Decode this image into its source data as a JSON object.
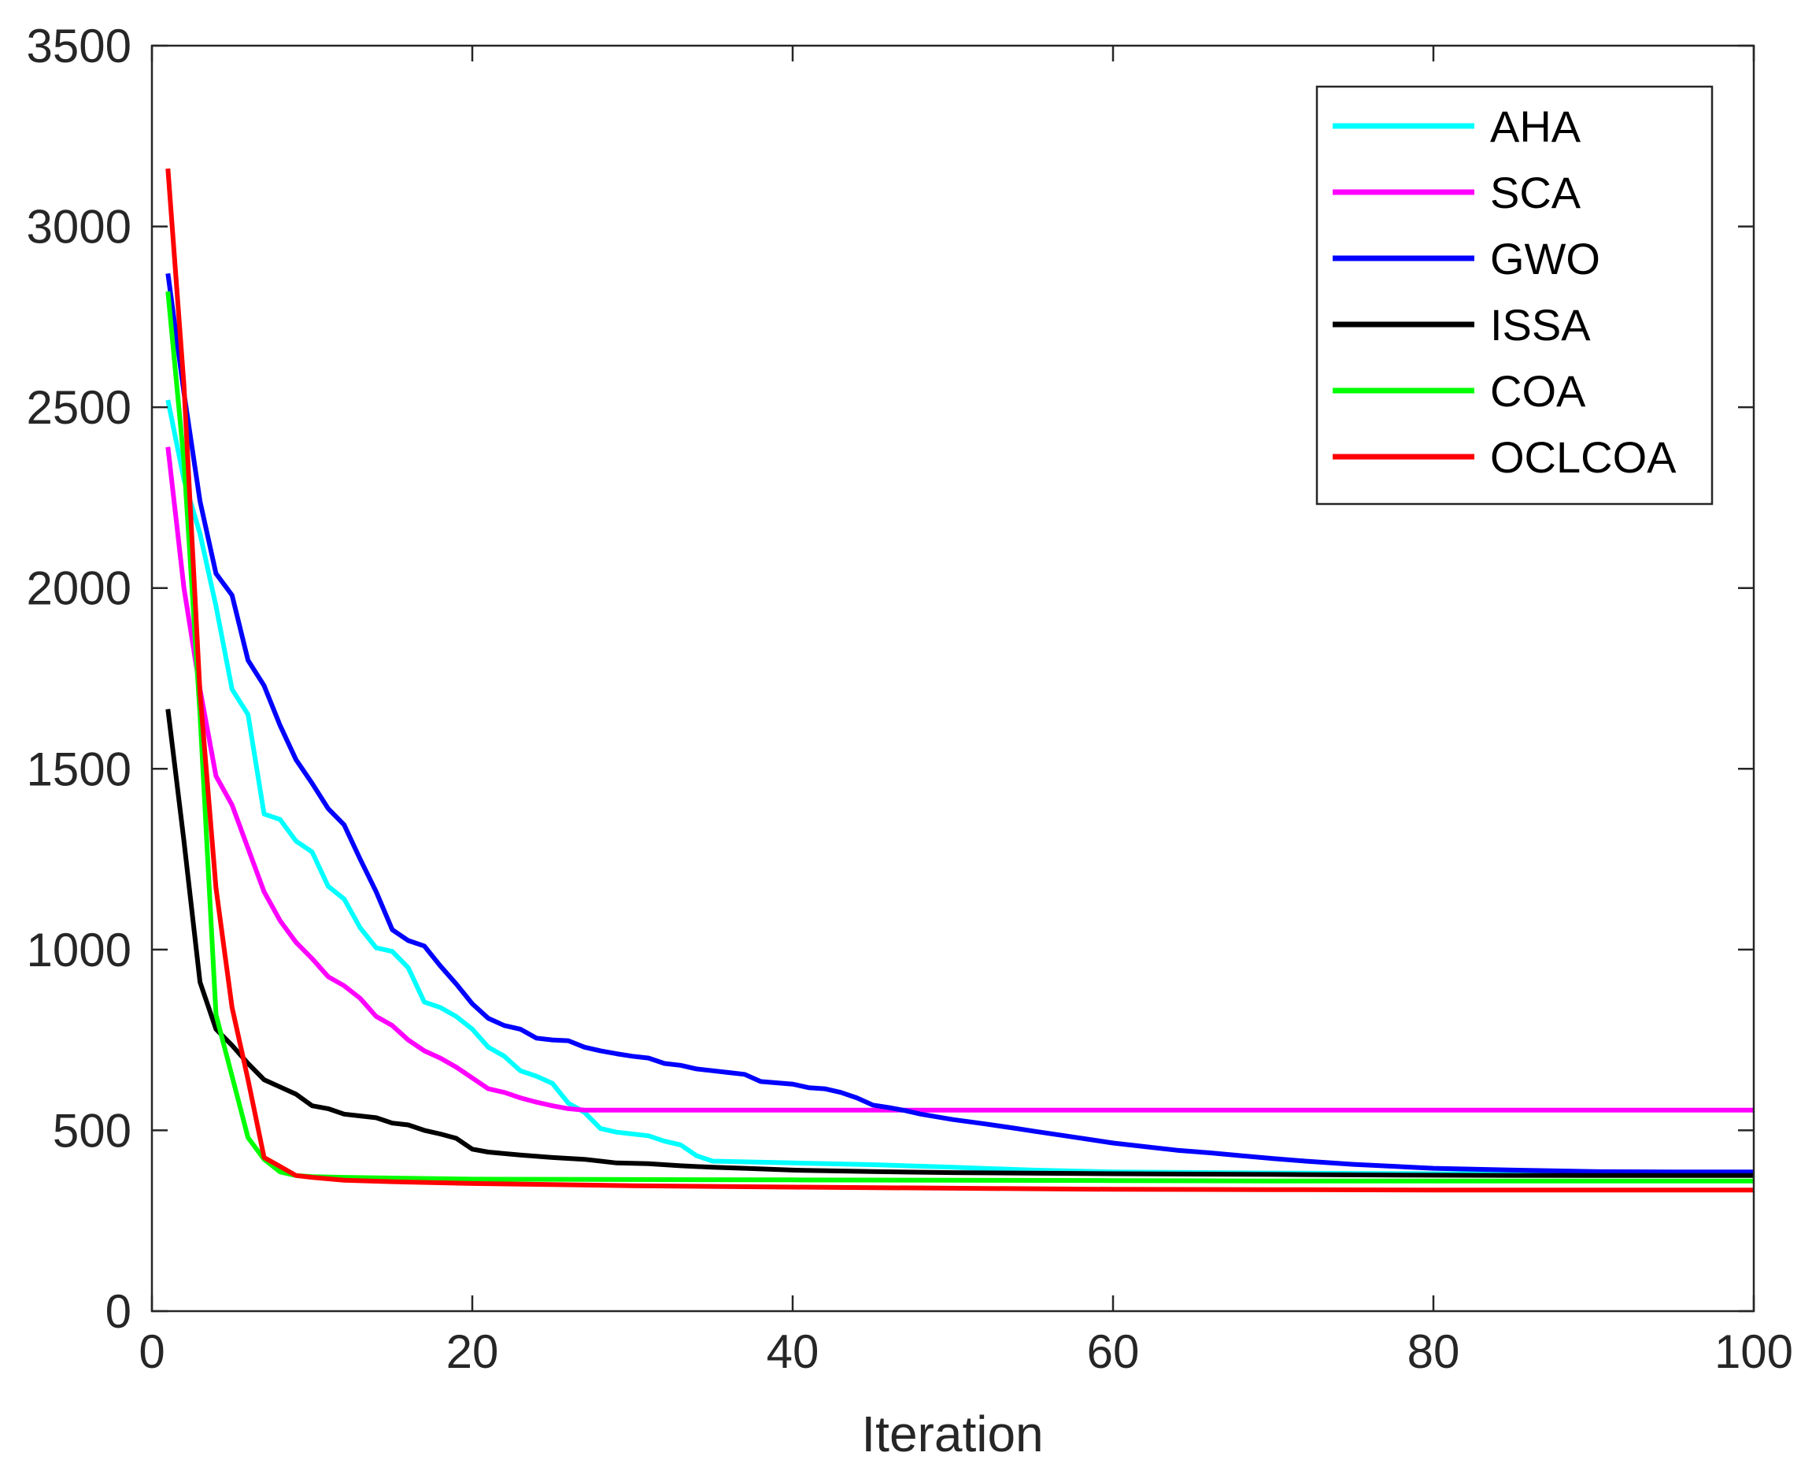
{
  "chart_data": {
    "type": "line",
    "title": "",
    "xlabel": "Iteration",
    "ylabel": "",
    "xlim": [
      0,
      100
    ],
    "ylim": [
      0,
      3500
    ],
    "xticks": [
      0,
      20,
      40,
      60,
      80,
      100
    ],
    "yticks": [
      0,
      500,
      1000,
      1500,
      2000,
      2500,
      3000,
      3500
    ],
    "grid": false,
    "legend_position": "top-right",
    "series": [
      {
        "name": "AHA",
        "color": "#00ffff",
        "points": [
          [
            1,
            2520
          ],
          [
            2,
            2300
          ],
          [
            3,
            2150
          ],
          [
            4,
            1950
          ],
          [
            5,
            1720
          ],
          [
            6,
            1650
          ],
          [
            7,
            1375
          ],
          [
            8,
            1360
          ],
          [
            9,
            1300
          ],
          [
            10,
            1270
          ],
          [
            11,
            1175
          ],
          [
            12,
            1140
          ],
          [
            13,
            1060
          ],
          [
            14,
            1005
          ],
          [
            15,
            995
          ],
          [
            16,
            950
          ],
          [
            17,
            855
          ],
          [
            18,
            840
          ],
          [
            19,
            815
          ],
          [
            20,
            780
          ],
          [
            21,
            730
          ],
          [
            22,
            705
          ],
          [
            23,
            665
          ],
          [
            24,
            650
          ],
          [
            25,
            630
          ],
          [
            26,
            575
          ],
          [
            27,
            550
          ],
          [
            28,
            505
          ],
          [
            29,
            495
          ],
          [
            30,
            490
          ],
          [
            31,
            485
          ],
          [
            32,
            470
          ],
          [
            33,
            460
          ],
          [
            34,
            430
          ],
          [
            35,
            415
          ],
          [
            40,
            410
          ],
          [
            45,
            405
          ],
          [
            50,
            398
          ],
          [
            55,
            390
          ],
          [
            60,
            385
          ],
          [
            70,
            382
          ],
          [
            80,
            380
          ],
          [
            90,
            380
          ],
          [
            100,
            380
          ]
        ]
      },
      {
        "name": "SCA",
        "color": "#ff00ff",
        "points": [
          [
            1,
            2390
          ],
          [
            2,
            2000
          ],
          [
            3,
            1720
          ],
          [
            4,
            1480
          ],
          [
            5,
            1400
          ],
          [
            6,
            1280
          ],
          [
            7,
            1160
          ],
          [
            8,
            1080
          ],
          [
            9,
            1020
          ],
          [
            10,
            975
          ],
          [
            11,
            925
          ],
          [
            12,
            900
          ],
          [
            13,
            865
          ],
          [
            14,
            815
          ],
          [
            15,
            790
          ],
          [
            16,
            750
          ],
          [
            17,
            720
          ],
          [
            18,
            700
          ],
          [
            19,
            675
          ],
          [
            20,
            645
          ],
          [
            21,
            615
          ],
          [
            22,
            605
          ],
          [
            23,
            590
          ],
          [
            24,
            578
          ],
          [
            25,
            568
          ],
          [
            26,
            560
          ],
          [
            27,
            556
          ],
          [
            30,
            556
          ],
          [
            40,
            556
          ],
          [
            50,
            556
          ],
          [
            60,
            556
          ],
          [
            70,
            556
          ],
          [
            80,
            556
          ],
          [
            90,
            556
          ],
          [
            100,
            556
          ]
        ]
      },
      {
        "name": "GWO",
        "color": "#0000ff",
        "points": [
          [
            1,
            2870
          ],
          [
            2,
            2540
          ],
          [
            3,
            2240
          ],
          [
            4,
            2040
          ],
          [
            5,
            1980
          ],
          [
            6,
            1800
          ],
          [
            7,
            1730
          ],
          [
            8,
            1620
          ],
          [
            9,
            1525
          ],
          [
            10,
            1460
          ],
          [
            11,
            1390
          ],
          [
            12,
            1345
          ],
          [
            13,
            1250
          ],
          [
            14,
            1160
          ],
          [
            15,
            1055
          ],
          [
            16,
            1025
          ],
          [
            17,
            1010
          ],
          [
            18,
            955
          ],
          [
            19,
            905
          ],
          [
            20,
            850
          ],
          [
            21,
            810
          ],
          [
            22,
            790
          ],
          [
            23,
            780
          ],
          [
            24,
            755
          ],
          [
            25,
            750
          ],
          [
            26,
            748
          ],
          [
            27,
            730
          ],
          [
            28,
            720
          ],
          [
            29,
            712
          ],
          [
            30,
            705
          ],
          [
            31,
            700
          ],
          [
            32,
            685
          ],
          [
            33,
            680
          ],
          [
            34,
            670
          ],
          [
            35,
            665
          ],
          [
            36,
            660
          ],
          [
            37,
            655
          ],
          [
            38,
            635
          ],
          [
            40,
            628
          ],
          [
            41,
            618
          ],
          [
            42,
            615
          ],
          [
            43,
            605
          ],
          [
            44,
            590
          ],
          [
            45,
            570
          ],
          [
            46,
            563
          ],
          [
            47,
            555
          ],
          [
            48,
            545
          ],
          [
            50,
            530
          ],
          [
            52,
            518
          ],
          [
            54,
            505
          ],
          [
            55,
            498
          ],
          [
            57,
            485
          ],
          [
            60,
            465
          ],
          [
            62,
            455
          ],
          [
            64,
            445
          ],
          [
            66,
            438
          ],
          [
            68,
            430
          ],
          [
            70,
            422
          ],
          [
            72,
            415
          ],
          [
            75,
            406
          ],
          [
            80,
            395
          ],
          [
            85,
            390
          ],
          [
            90,
            386
          ],
          [
            95,
            385
          ],
          [
            100,
            385
          ]
        ]
      },
      {
        "name": "ISSA",
        "color": "#000000",
        "points": [
          [
            1,
            1665
          ],
          [
            2,
            1300
          ],
          [
            3,
            910
          ],
          [
            4,
            780
          ],
          [
            5,
            735
          ],
          [
            6,
            685
          ],
          [
            7,
            640
          ],
          [
            8,
            620
          ],
          [
            9,
            600
          ],
          [
            10,
            568
          ],
          [
            11,
            560
          ],
          [
            12,
            545
          ],
          [
            13,
            540
          ],
          [
            14,
            535
          ],
          [
            15,
            520
          ],
          [
            16,
            515
          ],
          [
            17,
            500
          ],
          [
            18,
            490
          ],
          [
            19,
            478
          ],
          [
            20,
            448
          ],
          [
            21,
            440
          ],
          [
            23,
            432
          ],
          [
            25,
            425
          ],
          [
            27,
            420
          ],
          [
            29,
            410
          ],
          [
            31,
            408
          ],
          [
            33,
            402
          ],
          [
            35,
            398
          ],
          [
            37,
            395
          ],
          [
            40,
            390
          ],
          [
            45,
            386
          ],
          [
            50,
            383
          ],
          [
            60,
            380
          ],
          [
            70,
            378
          ],
          [
            80,
            376
          ],
          [
            90,
            375
          ],
          [
            100,
            375
          ]
        ]
      },
      {
        "name": "COA",
        "color": "#00ff00",
        "points": [
          [
            1,
            2820
          ],
          [
            2,
            2350
          ],
          [
            3,
            1650
          ],
          [
            4,
            820
          ],
          [
            5,
            650
          ],
          [
            6,
            480
          ],
          [
            7,
            420
          ],
          [
            8,
            385
          ],
          [
            9,
            375
          ],
          [
            10,
            372
          ],
          [
            12,
            370
          ],
          [
            15,
            368
          ],
          [
            20,
            365
          ],
          [
            30,
            364
          ],
          [
            40,
            363
          ],
          [
            50,
            362
          ],
          [
            60,
            361
          ],
          [
            70,
            360
          ],
          [
            80,
            360
          ],
          [
            90,
            360
          ],
          [
            100,
            360
          ]
        ]
      },
      {
        "name": "OCLCOA",
        "color": "#ff0000",
        "points": [
          [
            1,
            3160
          ],
          [
            2,
            2560
          ],
          [
            3,
            1710
          ],
          [
            4,
            1170
          ],
          [
            5,
            840
          ],
          [
            6,
            640
          ],
          [
            7,
            425
          ],
          [
            8,
            400
          ],
          [
            9,
            375
          ],
          [
            10,
            370
          ],
          [
            12,
            362
          ],
          [
            15,
            358
          ],
          [
            20,
            353
          ],
          [
            25,
            350
          ],
          [
            30,
            347
          ],
          [
            40,
            343
          ],
          [
            50,
            340
          ],
          [
            60,
            337
          ],
          [
            70,
            336
          ],
          [
            80,
            335
          ],
          [
            90,
            335
          ],
          [
            100,
            335
          ]
        ]
      }
    ]
  }
}
